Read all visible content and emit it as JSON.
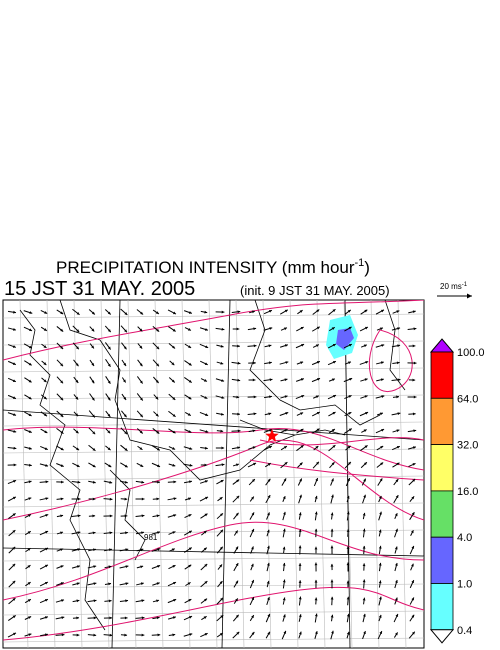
{
  "header": {
    "title": "PRECIPITATION INTENSITY (mm hour",
    "title_exponent": "-1",
    "title_close": ")",
    "time": "15 JST 31 MAY. 2005",
    "init": "(init. 9 JST 31 MAY. 2005)"
  },
  "vector_scale": {
    "label": "20 ms",
    "exponent": "-1"
  },
  "map": {
    "contour_label": "981"
  },
  "colorbar": {
    "labels": [
      "100.0",
      "64.0",
      "32.0",
      "16.0",
      "4.0",
      "1.0",
      "0.4"
    ],
    "colors": [
      "#ff0000",
      "#ff9933",
      "#ffff66",
      "#66e066",
      "#6666ff",
      "#66ffff"
    ],
    "over_color": "#b000ff",
    "under_color": "#ffffff"
  }
}
